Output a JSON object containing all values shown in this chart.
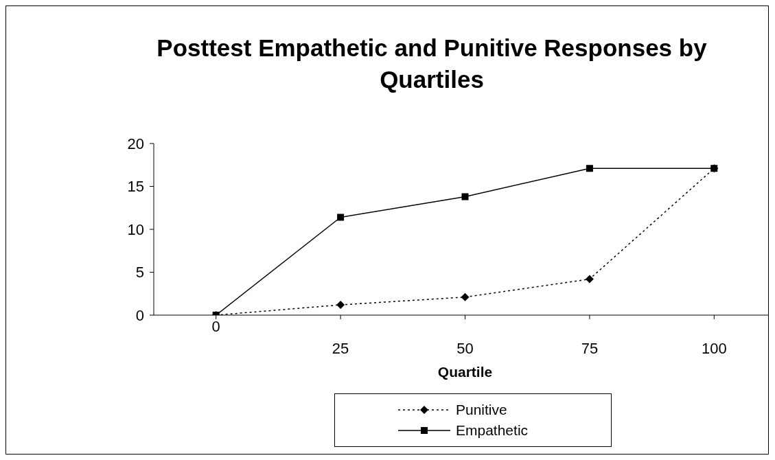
{
  "chart_data": {
    "type": "line",
    "title": "Posttest Empathetic and Punitive Responses by Quartiles",
    "xlabel": "Quartile",
    "categories": [
      "0",
      "25",
      "50",
      "75",
      "100"
    ],
    "series": [
      {
        "name": "Punitive",
        "color": "#000000",
        "values": [
          0,
          1.2,
          2.1,
          4.2,
          17.1
        ],
        "marker": "diamond",
        "line_style": "dotted"
      },
      {
        "name": "Empathetic",
        "color": "#000000",
        "values": [
          0,
          11.4,
          13.8,
          17.1,
          17.1
        ],
        "marker": "square",
        "line_style": "solid"
      }
    ],
    "ylim": [
      0,
      20
    ],
    "yticks": [
      0,
      5,
      10,
      15,
      20
    ],
    "grid": false,
    "legend": "bottom"
  }
}
